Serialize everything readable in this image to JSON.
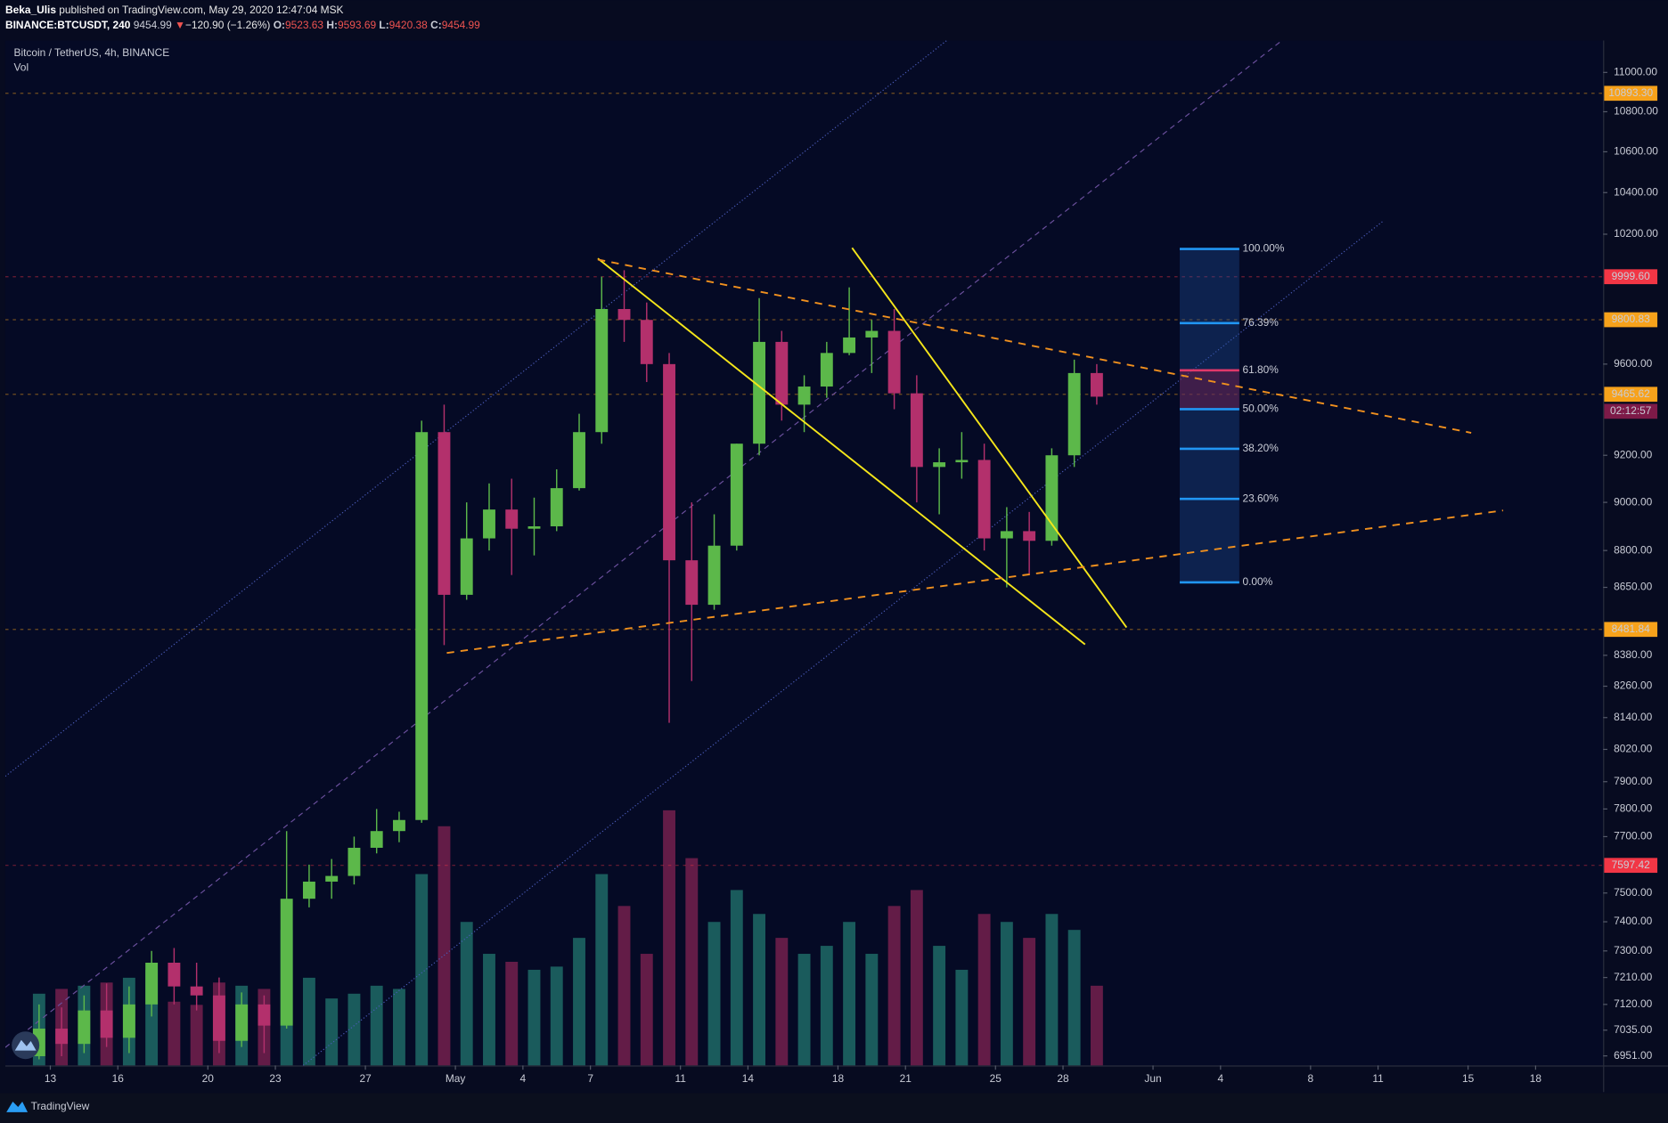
{
  "header": {
    "author": "Beka_Ulis",
    "published": "published on TradingView.com, May 29, 2020 12:47:04 MSK",
    "symbol": "BINANCE:BTCUSDT, 240",
    "last": 9454.99,
    "arrow": "▼",
    "change": "−120.90 (−1.26%)",
    "o_label": "O:",
    "open": 9523.63,
    "h_label": "H:",
    "high": 9593.69,
    "l_label": "L:",
    "low": 9420.38,
    "c_label": "C:",
    "close": 9454.99
  },
  "footer": {
    "brand": "TradingView"
  },
  "chart_data": {
    "type": "candlestick",
    "series_name": "Bitcoin / TetherUS, 4h, BINANCE",
    "volume_name": "Vol",
    "up_color": "#5cb84a",
    "down_color": "#b3306c",
    "log": true,
    "x": [
      "2020-04-12",
      "2020-04-13",
      "2020-04-14",
      "2020-04-15",
      "2020-04-16",
      "2020-04-17",
      "2020-04-18",
      "2020-04-19",
      "2020-04-20",
      "2020-04-21",
      "2020-04-22",
      "2020-04-23",
      "2020-04-24",
      "2020-04-25",
      "2020-04-26",
      "2020-04-27",
      "2020-04-28",
      "2020-04-29",
      "2020-04-30",
      "2020-05-01",
      "2020-05-02",
      "2020-05-03",
      "2020-05-04",
      "2020-05-05",
      "2020-05-06",
      "2020-05-07",
      "2020-05-08",
      "2020-05-09",
      "2020-05-10",
      "2020-05-11",
      "2020-05-12",
      "2020-05-13",
      "2020-05-14",
      "2020-05-15",
      "2020-05-16",
      "2020-05-17",
      "2020-05-18",
      "2020-05-19",
      "2020-05-20",
      "2020-05-21",
      "2020-05-22",
      "2020-05-23",
      "2020-05-24",
      "2020-05-25",
      "2020-05-26",
      "2020-05-27",
      "2020-05-28",
      "2020-05-29"
    ],
    "open": [
      6950,
      7040,
      6990,
      7100,
      7010,
      7120,
      7260,
      7180,
      7150,
      7000,
      7120,
      7050,
      7480,
      7540,
      7560,
      7660,
      7720,
      7760,
      9300,
      8620,
      8850,
      8970,
      8890,
      8900,
      9060,
      9300,
      9850,
      9800,
      9600,
      8760,
      8580,
      8820,
      9250,
      9700,
      9420,
      9500,
      9650,
      9720,
      9750,
      9470,
      9150,
      9170,
      9180,
      8850,
      8880,
      8840,
      9200,
      9560
    ],
    "high": [
      7120,
      7110,
      7150,
      7190,
      7180,
      7300,
      7310,
      7260,
      7210,
      7160,
      7150,
      7720,
      7600,
      7620,
      7700,
      7800,
      7790,
      9350,
      9420,
      9000,
      9080,
      9100,
      9020,
      9140,
      9380,
      10000,
      10030,
      9880,
      9650,
      9000,
      8950,
      9250,
      9900,
      9750,
      9550,
      9700,
      9950,
      9800,
      9850,
      9550,
      9230,
      9300,
      9250,
      8980,
      8960,
      9230,
      9620,
      9600
    ],
    "low": [
      6940,
      6950,
      6960,
      6980,
      6960,
      7080,
      7120,
      7100,
      6960,
      6980,
      6960,
      7040,
      7450,
      7480,
      7530,
      7640,
      7680,
      7750,
      8420,
      8600,
      8800,
      8700,
      8780,
      8880,
      9050,
      9250,
      9700,
      9520,
      8120,
      8280,
      8560,
      8800,
      9200,
      9350,
      9300,
      9450,
      9640,
      9560,
      9400,
      9000,
      8950,
      9100,
      8800,
      8650,
      8700,
      8820,
      9150,
      9420
    ],
    "close": [
      7040,
      6990,
      7100,
      7010,
      7120,
      7260,
      7180,
      7150,
      7000,
      7120,
      7050,
      7480,
      7540,
      7560,
      7660,
      7720,
      7760,
      9300,
      8620,
      8850,
      8970,
      8890,
      8900,
      9060,
      9300,
      9850,
      9800,
      9600,
      8760,
      8580,
      8820,
      9250,
      9700,
      9420,
      9500,
      9650,
      9720,
      9750,
      9470,
      9150,
      9170,
      9180,
      8850,
      8880,
      8840,
      9200,
      9560,
      9455
    ],
    "volume": [
      45000,
      48000,
      50000,
      52000,
      55000,
      60000,
      40000,
      38000,
      52000,
      50000,
      48000,
      85000,
      55000,
      42000,
      45000,
      50000,
      48000,
      120000,
      150000,
      90000,
      70000,
      65000,
      60000,
      62000,
      80000,
      120000,
      100000,
      70000,
      160000,
      130000,
      90000,
      110000,
      95000,
      80000,
      70000,
      75000,
      90000,
      70000,
      100000,
      110000,
      75000,
      60000,
      95000,
      90000,
      80000,
      95000,
      85000,
      50000
    ],
    "xlim": [
      "2020-04-11",
      "2020-06-21"
    ],
    "xticks": [
      {
        "value": "2020-04-13",
        "label": "13"
      },
      {
        "value": "2020-04-16",
        "label": "16"
      },
      {
        "value": "2020-04-20",
        "label": "20"
      },
      {
        "value": "2020-04-23",
        "label": "23"
      },
      {
        "value": "2020-04-27",
        "label": "27"
      },
      {
        "value": "2020-05-01",
        "label": "May"
      },
      {
        "value": "2020-05-04",
        "label": "4"
      },
      {
        "value": "2020-05-07",
        "label": "7"
      },
      {
        "value": "2020-05-11",
        "label": "11"
      },
      {
        "value": "2020-05-14",
        "label": "14"
      },
      {
        "value": "2020-05-18",
        "label": "18"
      },
      {
        "value": "2020-05-21",
        "label": "21"
      },
      {
        "value": "2020-05-25",
        "label": "25"
      },
      {
        "value": "2020-05-28",
        "label": "28"
      },
      {
        "value": "2020-06-01",
        "label": "Jun"
      },
      {
        "value": "2020-06-04",
        "label": "4"
      },
      {
        "value": "2020-06-08",
        "label": "8"
      },
      {
        "value": "2020-06-11",
        "label": "11"
      },
      {
        "value": "2020-06-15",
        "label": "15"
      },
      {
        "value": "2020-06-18",
        "label": "18"
      }
    ],
    "ylim": [
      6920,
      11165
    ],
    "yticks": [
      {
        "value": 11000,
        "label": "11000.00"
      },
      {
        "value": 10800,
        "label": "10800.00"
      },
      {
        "value": 10600,
        "label": "10600.00"
      },
      {
        "value": 10400,
        "label": "10400.00"
      },
      {
        "value": 10200,
        "label": "10200.00"
      },
      {
        "value": 9600,
        "label": "9600.00"
      },
      {
        "value": 9200,
        "label": "9200.00"
      },
      {
        "value": 9000,
        "label": "9000.00"
      },
      {
        "value": 8800,
        "label": "8800.00"
      },
      {
        "value": 8650,
        "label": "8650.00"
      },
      {
        "value": 8380,
        "label": "8380.00"
      },
      {
        "value": 8260,
        "label": "8260.00"
      },
      {
        "value": 8140,
        "label": "8140.00"
      },
      {
        "value": 8020,
        "label": "8020.00"
      },
      {
        "value": 7900,
        "label": "7900.00"
      },
      {
        "value": 7800,
        "label": "7800.00"
      },
      {
        "value": 7700,
        "label": "7700.00"
      },
      {
        "value": 7500,
        "label": "7500.00"
      },
      {
        "value": 7400,
        "label": "7400.00"
      },
      {
        "value": 7300,
        "label": "7300.00"
      },
      {
        "value": 7210,
        "label": "7210.00"
      },
      {
        "value": 7120,
        "label": "7120.00"
      },
      {
        "value": 7035,
        "label": "7035.00"
      },
      {
        "value": 6951,
        "label": "6951.00"
      }
    ],
    "price_lines": [
      {
        "value": 10893.3,
        "label": "10893.30",
        "color": "#f7a21b"
      },
      {
        "value": 9999.6,
        "label": "9999.60",
        "color": "#f23645"
      },
      {
        "value": 9800.83,
        "label": "9800.83",
        "color": "#f7a21b"
      },
      {
        "value": 9465.62,
        "label": "9465.62",
        "color": "#f7a21b"
      },
      {
        "value": 8481.84,
        "label": "8481.84",
        "color": "#f7a21b"
      },
      {
        "value": 7597.42,
        "label": "7597.42",
        "color": "#f23645"
      }
    ],
    "countdown": "02:12:57",
    "fib": {
      "high": 10130,
      "low": 8670,
      "levels": [
        {
          "value": 100,
          "label": "100.00%",
          "color": "#2196f3"
        },
        {
          "value": 76.39,
          "label": "76.39%",
          "color": "#2196f3"
        },
        {
          "value": 61.8,
          "label": "61.80%",
          "color": "#e0386a"
        },
        {
          "value": 50,
          "label": "50.00%",
          "color": "#2196f3"
        },
        {
          "value": 38.2,
          "label": "38.20%",
          "color": "#2196f3"
        },
        {
          "value": 23.6,
          "label": "23.60%",
          "color": "#2196f3"
        },
        {
          "value": 0,
          "label": "0.00%",
          "color": "#2196f3"
        }
      ]
    }
  }
}
